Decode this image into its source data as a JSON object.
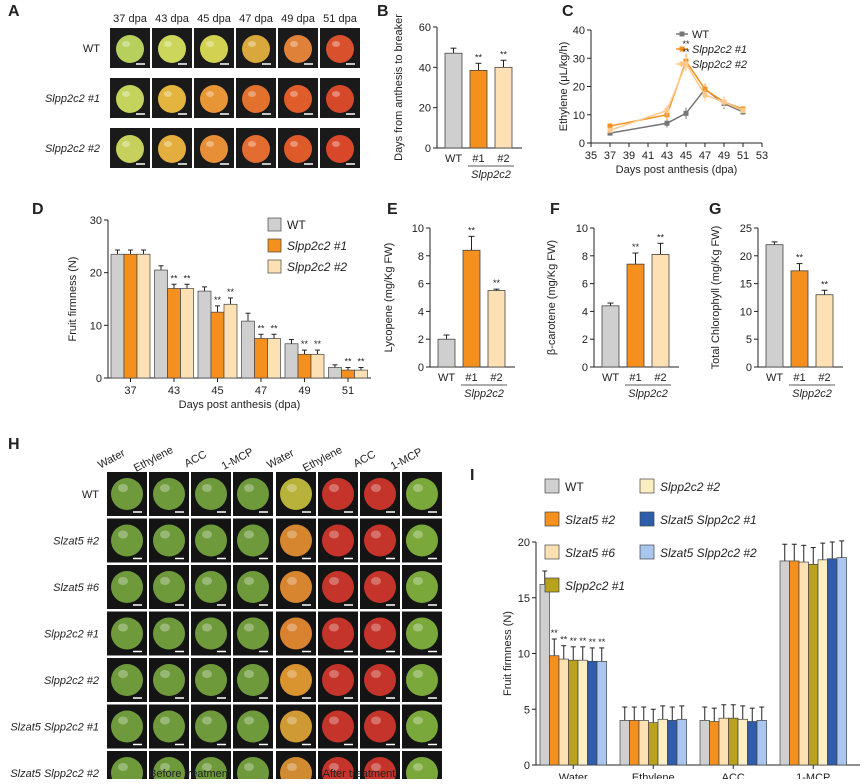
{
  "panel_A": {
    "letter": "A",
    "columns": [
      "37 dpa",
      "43 dpa",
      "45 dpa",
      "47 dpa",
      "49 dpa",
      "51 dpa"
    ],
    "rows": [
      "WT",
      "Slpp2c2 #1",
      "Slpp2c2 #2"
    ],
    "colors": [
      [
        "#b7cf5c",
        "#cbd65a",
        "#d2d152",
        "#d9a83c",
        "#e0813a",
        "#d8502c"
      ],
      [
        "#c3d35c",
        "#e3b53f",
        "#e89536",
        "#e2712e",
        "#e05c2a",
        "#d6482a"
      ],
      [
        "#c6d05c",
        "#e4ae3e",
        "#e78f37",
        "#e36c30",
        "#de5a2b",
        "#d8472a"
      ]
    ]
  },
  "panel_H": {
    "letter": "H",
    "before_cols": [
      "Water",
      "Ethylene",
      "ACC",
      "1-MCP"
    ],
    "after_cols": [
      "Water",
      "Ethylene",
      "ACC",
      "1-MCP"
    ],
    "rows": [
      "WT",
      "Slzat5 #2",
      "Slzat5 #6",
      "Slpp2c2 #1",
      "Slpp2c2 #2",
      "Slzat5 Slpp2c2 #1",
      "Slzat5 Slpp2c2 #2"
    ],
    "before_label": "Before treatment",
    "after_label": "After treatment",
    "after_water_colors": [
      "#b8b13a",
      "#d5862f",
      "#d8852f",
      "#d98230",
      "#d9932f",
      "#cf9933",
      "#d08a32"
    ],
    "after_red": "#c4342a",
    "after_green": "#7aa83a",
    "before_green": "#6e9a3c"
  },
  "chart_data": [
    {
      "panel": "B",
      "type": "bar",
      "categories": [
        "WT",
        "#1",
        "#2"
      ],
      "group_label": "Slpp2c2",
      "values": [
        47,
        38.5,
        40
      ],
      "errors": [
        2.5,
        3.5,
        3.5
      ],
      "sig": [
        "",
        "**",
        "**"
      ],
      "colors": [
        "#cfcfcf",
        "#f5901e",
        "#fde1b4"
      ],
      "ylabel": "Days from anthesis to breaker",
      "ylim": [
        0,
        60
      ],
      "yticks": [
        0,
        20,
        40,
        60
      ]
    },
    {
      "panel": "C",
      "type": "line",
      "x": [
        37,
        43,
        45,
        47,
        49,
        51
      ],
      "series": [
        {
          "name": "WT",
          "values": [
            3.5,
            7,
            10.5,
            19,
            14,
            11
          ],
          "errors": [
            0.8,
            1.5,
            2,
            2,
            2,
            1
          ],
          "color": "#777777"
        },
        {
          "name": "Slpp2c2 #1",
          "values": [
            6,
            10,
            29,
            19,
            14.5,
            12
          ],
          "errors": [
            1,
            2,
            2.5,
            2,
            2,
            1
          ],
          "color": "#f5901e"
        },
        {
          "name": "Slpp2c2 #2",
          "values": [
            4.5,
            11.5,
            28,
            17,
            14.5,
            11.5
          ],
          "errors": [
            1,
            2,
            2.5,
            2,
            2,
            1
          ],
          "color": "#fbc98c"
        }
      ],
      "sig_label": "**",
      "xlabel": "Days post anthesis (dpa)",
      "ylabel": "Ethylene (μL/kg/h)",
      "xlim": [
        35,
        53
      ],
      "xticks": [
        35,
        37,
        39,
        41,
        43,
        45,
        47,
        49,
        51,
        53
      ],
      "ylim": [
        0,
        40
      ],
      "yticks": [
        0,
        10,
        20,
        30,
        40
      ]
    },
    {
      "panel": "D",
      "type": "bar",
      "categories": [
        "37",
        "43",
        "45",
        "47",
        "49",
        "51"
      ],
      "series": [
        {
          "name": "WT",
          "values": [
            23.5,
            20.5,
            16.5,
            10.8,
            6.5,
            2
          ],
          "errors": [
            0.8,
            0.8,
            0.8,
            1.5,
            0.8,
            0.5
          ],
          "color": "#cfcfcf"
        },
        {
          "name": "Slpp2c2 #1",
          "values": [
            23.5,
            17,
            12.5,
            7.5,
            4.5,
            1.5
          ],
          "errors": [
            0.8,
            0.8,
            1.2,
            0.8,
            0.8,
            0.5
          ],
          "color": "#f5901e"
        },
        {
          "name": "Slpp2c2 #2",
          "values": [
            23.5,
            17,
            14,
            7.5,
            4.5,
            1.5
          ],
          "errors": [
            0.8,
            0.8,
            1.2,
            0.8,
            0.8,
            0.5
          ],
          "color": "#fde1b4"
        }
      ],
      "sig_label": "**",
      "xlabel": "Days post anthesis (dpa)",
      "ylabel": "Fruit firmness (N)",
      "ylim": [
        0,
        30
      ],
      "yticks": [
        0,
        10,
        20,
        30
      ]
    },
    {
      "panel": "E",
      "type": "bar",
      "categories": [
        "WT",
        "#1",
        "#2"
      ],
      "group_label": "Slpp2c2",
      "values": [
        2,
        8.4,
        5.5
      ],
      "errors": [
        0.3,
        1,
        0.1
      ],
      "sig": [
        "",
        "**",
        "**"
      ],
      "colors": [
        "#cfcfcf",
        "#f5901e",
        "#fde1b4"
      ],
      "ylabel": "Lycopene (mg/Kg FW)",
      "ylim": [
        0,
        10
      ],
      "yticks": [
        0,
        2,
        4,
        6,
        8,
        10
      ]
    },
    {
      "panel": "F",
      "type": "bar",
      "categories": [
        "WT",
        "#1",
        "#2"
      ],
      "group_label": "Slpp2c2",
      "values": [
        4.4,
        7.4,
        8.1
      ],
      "errors": [
        0.2,
        0.8,
        0.8
      ],
      "sig": [
        "",
        "**",
        "**"
      ],
      "colors": [
        "#cfcfcf",
        "#f5901e",
        "#fde1b4"
      ],
      "ylabel": "β-carotene (mg/Kg FW)",
      "ylim": [
        0,
        10
      ],
      "yticks": [
        0,
        2,
        4,
        6,
        8,
        10
      ]
    },
    {
      "panel": "G",
      "type": "bar",
      "categories": [
        "WT",
        "#1",
        "#2"
      ],
      "group_label": "Slpp2c2",
      "values": [
        22,
        17.3,
        13
      ],
      "errors": [
        0.5,
        1.3,
        0.8
      ],
      "sig": [
        "",
        "**",
        "**"
      ],
      "colors": [
        "#cfcfcf",
        "#f5901e",
        "#fde1b4"
      ],
      "ylabel": "Total Chlorophyll (mg/Kg FW)",
      "ylim": [
        0,
        25
      ],
      "yticks": [
        0,
        5,
        10,
        15,
        20,
        25
      ]
    },
    {
      "panel": "I",
      "type": "bar",
      "categories": [
        "Water",
        "Ethylene",
        "ACC",
        "1-MCP"
      ],
      "series": [
        {
          "name": "WT",
          "values": [
            16.2,
            4,
            4,
            18.3
          ],
          "errors": [
            1.2,
            1.2,
            1.2,
            1.5
          ],
          "color": "#cfcfcf"
        },
        {
          "name": "Slzat5 #2",
          "values": [
            9.8,
            4,
            3.9,
            18.3
          ],
          "errors": [
            1.5,
            1.2,
            1.2,
            1.5
          ],
          "color": "#f5901e"
        },
        {
          "name": "Slzat5 #6",
          "values": [
            9.5,
            4,
            4.2,
            18.2
          ],
          "errors": [
            1.2,
            1.2,
            1.2,
            1.5
          ],
          "color": "#fde1b4"
        },
        {
          "name": "Slpp2c2 #1",
          "values": [
            9.4,
            3.8,
            4.2,
            18.0
          ],
          "errors": [
            1.2,
            1.2,
            1.2,
            1.5
          ],
          "color": "#b8a21e"
        },
        {
          "name": "Slpp2c2 #2",
          "values": [
            9.4,
            4.1,
            4.1,
            18.4
          ],
          "errors": [
            1.2,
            1.2,
            1.2,
            1.5
          ],
          "color": "#fbeec2"
        },
        {
          "name": "Slzat5 Slpp2c2 #1",
          "values": [
            9.3,
            4,
            3.9,
            18.5
          ],
          "errors": [
            1.2,
            1.2,
            1.2,
            1.5
          ],
          "color": "#2d5dab"
        },
        {
          "name": "Slzat5 Slpp2c2 #2",
          "values": [
            9.3,
            4.1,
            4,
            18.6
          ],
          "errors": [
            1.2,
            1.2,
            1.2,
            1.5
          ],
          "color": "#a9c6ee"
        }
      ],
      "sig_label": "**",
      "ylabel": "Fruit firmness (N)",
      "ylim": [
        0,
        20
      ],
      "yticks": [
        0,
        5,
        10,
        15,
        20
      ]
    }
  ],
  "panel_letters": {
    "B": "B",
    "C": "C",
    "D": "D",
    "E": "E",
    "F": "F",
    "G": "G",
    "I": "I"
  }
}
